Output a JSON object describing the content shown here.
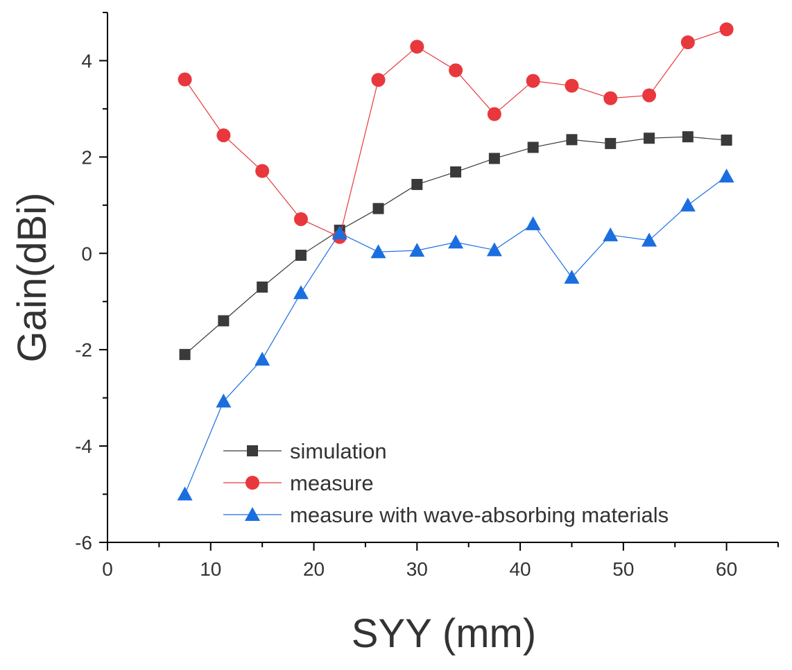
{
  "chart_data": {
    "type": "line",
    "title": "",
    "xlabel": "SYY (mm)",
    "ylabel": "Gain(dBi)",
    "xlim": [
      0,
      65
    ],
    "ylim": [
      -6,
      5
    ],
    "xticks": [
      0,
      10,
      20,
      30,
      40,
      50,
      60
    ],
    "yticks": [
      -6,
      -4,
      -2,
      0,
      2,
      4
    ],
    "grid": false,
    "legend_position": "bottom-right",
    "x": [
      7.5,
      11.25,
      15,
      18.75,
      22.5,
      26.25,
      30,
      33.75,
      37.5,
      41.25,
      45,
      48.75,
      52.5,
      56.25,
      60
    ],
    "series": [
      {
        "name": "simulation",
        "color": "#3a3a3a",
        "marker": "square",
        "values": [
          -2.1,
          -1.4,
          -0.7,
          -0.04,
          0.48,
          0.93,
          1.43,
          1.69,
          1.97,
          2.2,
          2.36,
          2.28,
          2.39,
          2.42,
          2.35
        ]
      },
      {
        "name": "measure",
        "color": "#e8383d",
        "marker": "circle",
        "values": [
          3.61,
          2.45,
          1.71,
          0.71,
          0.34,
          3.6,
          4.29,
          3.8,
          2.89,
          3.58,
          3.48,
          3.22,
          3.28,
          4.38,
          4.65
        ]
      },
      {
        "name": "measure with wave-absorbing materials",
        "color": "#1a6ee0",
        "marker": "triangle",
        "values": [
          -5.0,
          -3.07,
          -2.2,
          -0.82,
          0.42,
          0.03,
          0.06,
          0.23,
          0.07,
          0.61,
          -0.5,
          0.38,
          0.27,
          1.0,
          1.6
        ]
      }
    ]
  }
}
